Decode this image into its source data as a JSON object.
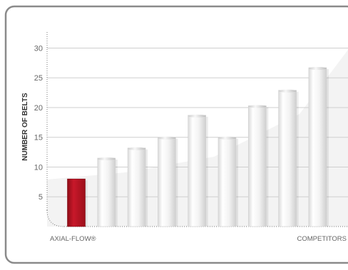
{
  "chart_data": {
    "type": "bar",
    "title": "",
    "xlabel": "",
    "ylabel": "NUMBER OF BELTS",
    "ylim": [
      0,
      37
    ],
    "yticks": [
      5,
      10,
      15,
      20,
      25,
      30
    ],
    "grid": true,
    "legend": "none",
    "categories": [
      "",
      "",
      "",
      "",
      "",
      "",
      "",
      "",
      ""
    ],
    "values": [
      8,
      11.5,
      13.2,
      15,
      18.7,
      15,
      20.3,
      22.9,
      26.7
    ],
    "group_labels": {
      "left": "AXIAL-FLOW®",
      "right": "COMPETITORS"
    }
  },
  "colors": {
    "highlight_bar": "#b3121f",
    "bar": "#f2f2f2",
    "gridline": "#cfcfcf",
    "axis_text": "#666666",
    "frame_border": "#8a8a8a",
    "background_shade": "#f1f1f1"
  }
}
